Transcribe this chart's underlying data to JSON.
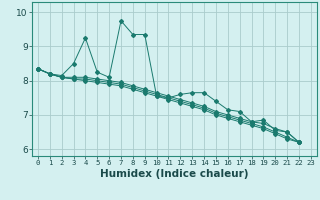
{
  "xlabel": "Humidex (Indice chaleur)",
  "bg_color": "#d4f0f0",
  "line_color": "#1a7a6e",
  "grid_color": "#b8dede",
  "xlim": [
    -0.5,
    23.5
  ],
  "ylim": [
    5.8,
    10.3
  ],
  "xticks": [
    0,
    1,
    2,
    3,
    4,
    5,
    6,
    7,
    8,
    9,
    10,
    11,
    12,
    13,
    14,
    15,
    16,
    17,
    18,
    19,
    20,
    21,
    22,
    23
  ],
  "yticks": [
    6,
    7,
    8,
    9,
    10
  ],
  "lines": [
    {
      "x": [
        0,
        1,
        2,
        3,
        4,
        5,
        6,
        7,
        8,
        9,
        10,
        11,
        12,
        13,
        14,
        15,
        16,
        17,
        18,
        19,
        20,
        21,
        22
      ],
      "y": [
        8.35,
        8.2,
        8.15,
        8.5,
        9.25,
        8.25,
        8.1,
        9.75,
        9.35,
        9.35,
        7.55,
        7.5,
        7.6,
        7.65,
        7.65,
        7.4,
        7.15,
        7.1,
        6.8,
        6.85,
        6.55,
        6.5,
        6.2
      ]
    },
    {
      "x": [
        0,
        1,
        2,
        3,
        4,
        5,
        6,
        7,
        8,
        9,
        10,
        11,
        12,
        13,
        14,
        15,
        16,
        17,
        18,
        19,
        20,
        21,
        22
      ],
      "y": [
        8.35,
        8.2,
        8.1,
        8.1,
        8.1,
        8.05,
        8.0,
        7.95,
        7.85,
        7.75,
        7.65,
        7.55,
        7.45,
        7.35,
        7.25,
        7.1,
        7.0,
        6.9,
        6.8,
        6.75,
        6.6,
        6.5,
        6.2
      ]
    },
    {
      "x": [
        0,
        1,
        2,
        3,
        4,
        5,
        6,
        7,
        8,
        9,
        10,
        11,
        12,
        13,
        14,
        15,
        16,
        17,
        18,
        19,
        20,
        21,
        22
      ],
      "y": [
        8.35,
        8.2,
        8.1,
        8.05,
        8.05,
        8.0,
        7.95,
        7.9,
        7.8,
        7.7,
        7.6,
        7.5,
        7.4,
        7.3,
        7.2,
        7.05,
        6.95,
        6.85,
        6.75,
        6.65,
        6.5,
        6.35,
        6.2
      ]
    },
    {
      "x": [
        0,
        1,
        2,
        3,
        4,
        5,
        6,
        7,
        8,
        9,
        10,
        11,
        12,
        13,
        14,
        15,
        16,
        17,
        18,
        19,
        20,
        21,
        22
      ],
      "y": [
        8.35,
        8.2,
        8.1,
        8.05,
        8.0,
        7.95,
        7.9,
        7.85,
        7.75,
        7.65,
        7.55,
        7.45,
        7.35,
        7.25,
        7.15,
        7.0,
        6.9,
        6.8,
        6.7,
        6.6,
        6.45,
        6.3,
        6.2
      ]
    }
  ]
}
